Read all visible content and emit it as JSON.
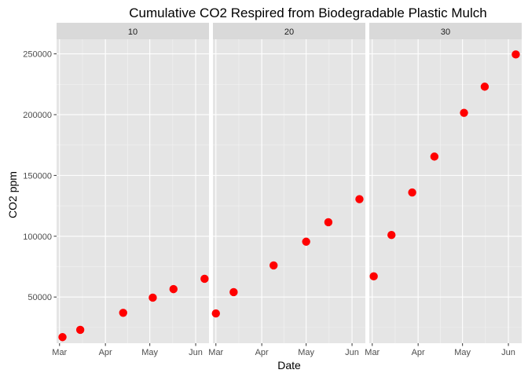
{
  "chart_data": {
    "type": "scatter",
    "title": "Cumulative CO2 Respired from Biodegradable Plastic Mulch",
    "xlabel": "Date",
    "ylabel": "CO2 ppm",
    "x_ticks": [
      "Mar",
      "Apr",
      "May",
      "Jun"
    ],
    "x_tick_dates": [
      "2018-03-01",
      "2018-04-01",
      "2018-05-01",
      "2018-06-01"
    ],
    "y_ticks": [
      50000,
      100000,
      150000,
      200000,
      250000
    ],
    "y_tick_labels": [
      "50000",
      "100000",
      "150000",
      "200000",
      "250000"
    ],
    "ylim": [
      12000,
      262000
    ],
    "xlim": [
      "2018-02-27",
      "2018-06-10"
    ],
    "grid": true,
    "point_color": "#ff0000",
    "panel_background": "#e5e5e5",
    "strip_background": "#d9d9d9",
    "panels": [
      {
        "label": "10",
        "points": [
          {
            "x": "2018-03-03",
            "y": 17000
          },
          {
            "x": "2018-03-15",
            "y": 23000
          },
          {
            "x": "2018-04-13",
            "y": 37000
          },
          {
            "x": "2018-05-03",
            "y": 49500
          },
          {
            "x": "2018-05-17",
            "y": 56500
          },
          {
            "x": "2018-06-07",
            "y": 65000
          }
        ]
      },
      {
        "label": "20",
        "points": [
          {
            "x": "2018-03-01",
            "y": 36500
          },
          {
            "x": "2018-03-13",
            "y": 54000
          },
          {
            "x": "2018-04-09",
            "y": 76000
          },
          {
            "x": "2018-05-01",
            "y": 95500
          },
          {
            "x": "2018-05-16",
            "y": 111500
          },
          {
            "x": "2018-06-06",
            "y": 130500
          }
        ]
      },
      {
        "label": "30",
        "points": [
          {
            "x": "2018-03-02",
            "y": 67000
          },
          {
            "x": "2018-03-14",
            "y": 101000
          },
          {
            "x": "2018-03-28",
            "y": 136000
          },
          {
            "x": "2018-04-12",
            "y": 165500
          },
          {
            "x": "2018-05-02",
            "y": 201500
          },
          {
            "x": "2018-05-16",
            "y": 223000
          },
          {
            "x": "2018-06-06",
            "y": 249500
          }
        ]
      }
    ]
  }
}
